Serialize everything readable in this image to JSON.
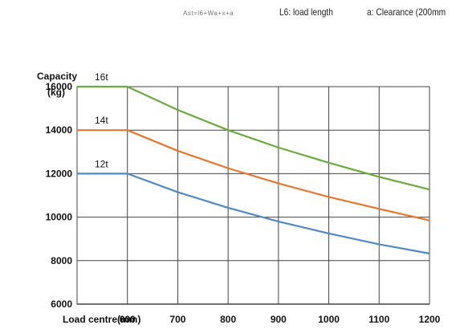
{
  "header": {
    "formula": "Ast=l6+Wa+x+a",
    "l6_note": "L6: load length",
    "a_note": "a: Clearance (200mm"
  },
  "chart_data": {
    "type": "line",
    "title": "",
    "ylabel_line1": "Capacity",
    "ylabel_line2": "(kg)",
    "xlabel": "Load centre(mm)",
    "x": [
      500,
      600,
      700,
      800,
      900,
      1000,
      1100,
      1200
    ],
    "xticks": [
      600,
      700,
      800,
      900,
      1000,
      1100,
      1200
    ],
    "yticks": [
      6000,
      8000,
      10000,
      12000,
      14000,
      16000
    ],
    "xlim": [
      500,
      1200
    ],
    "ylim": [
      6000,
      16000
    ],
    "grid": true,
    "series": [
      {
        "name": "16t",
        "color": "#6aab3e",
        "values": [
          16000,
          16000,
          14930,
          14000,
          13200,
          12500,
          11850,
          11270
        ]
      },
      {
        "name": "14t",
        "color": "#e8772e",
        "values": [
          14000,
          14000,
          13050,
          12250,
          11550,
          10930,
          10380,
          9850
        ]
      },
      {
        "name": "12t",
        "color": "#4f8ac6",
        "values": [
          12000,
          12000,
          11150,
          10430,
          9800,
          9250,
          8750,
          8330
        ]
      }
    ]
  }
}
